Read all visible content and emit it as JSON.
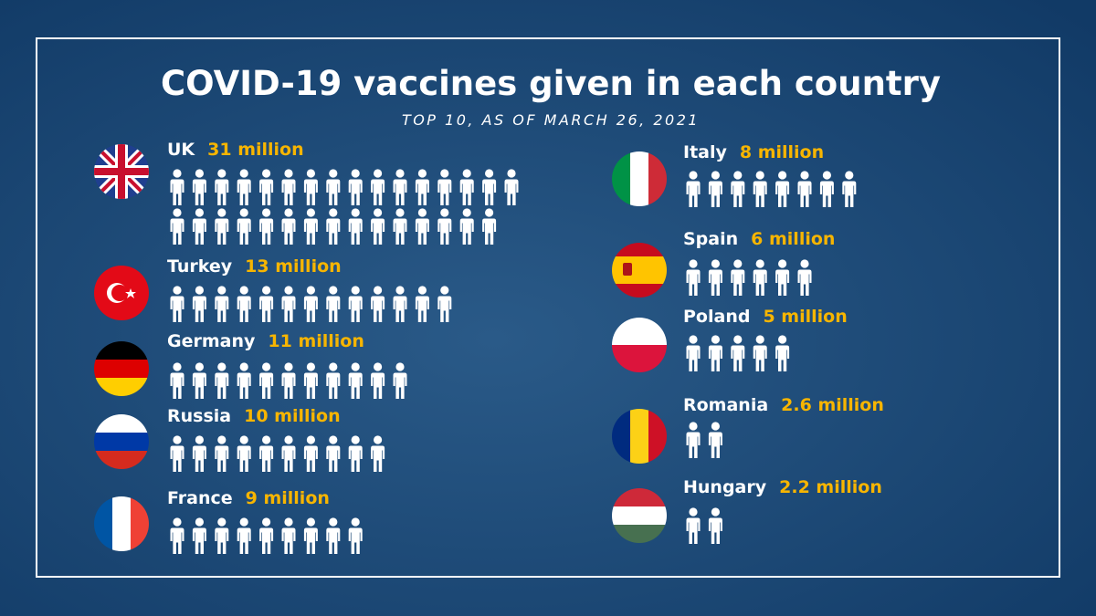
{
  "chart_data": {
    "type": "pictogram",
    "title": "COVID-19 vaccines given in each country",
    "subtitle": "TOP 10, AS OF MARCH 26, 2021",
    "categories": [
      "UK",
      "Turkey",
      "Germany",
      "Russia",
      "France",
      "Italy",
      "Spain",
      "Poland",
      "Romania",
      "Hungary"
    ],
    "values": [
      31,
      13,
      11,
      10,
      9,
      8,
      6,
      5,
      2.6,
      2.2
    ],
    "value_labels": [
      "31 million",
      "13 million",
      "11 million",
      "10 million",
      "9 million",
      "8 million",
      "6 million",
      "5 million",
      "2.6 million",
      "2.2 million"
    ],
    "color": "#ffffff",
    "label_color": "#f7b500"
  }
}
